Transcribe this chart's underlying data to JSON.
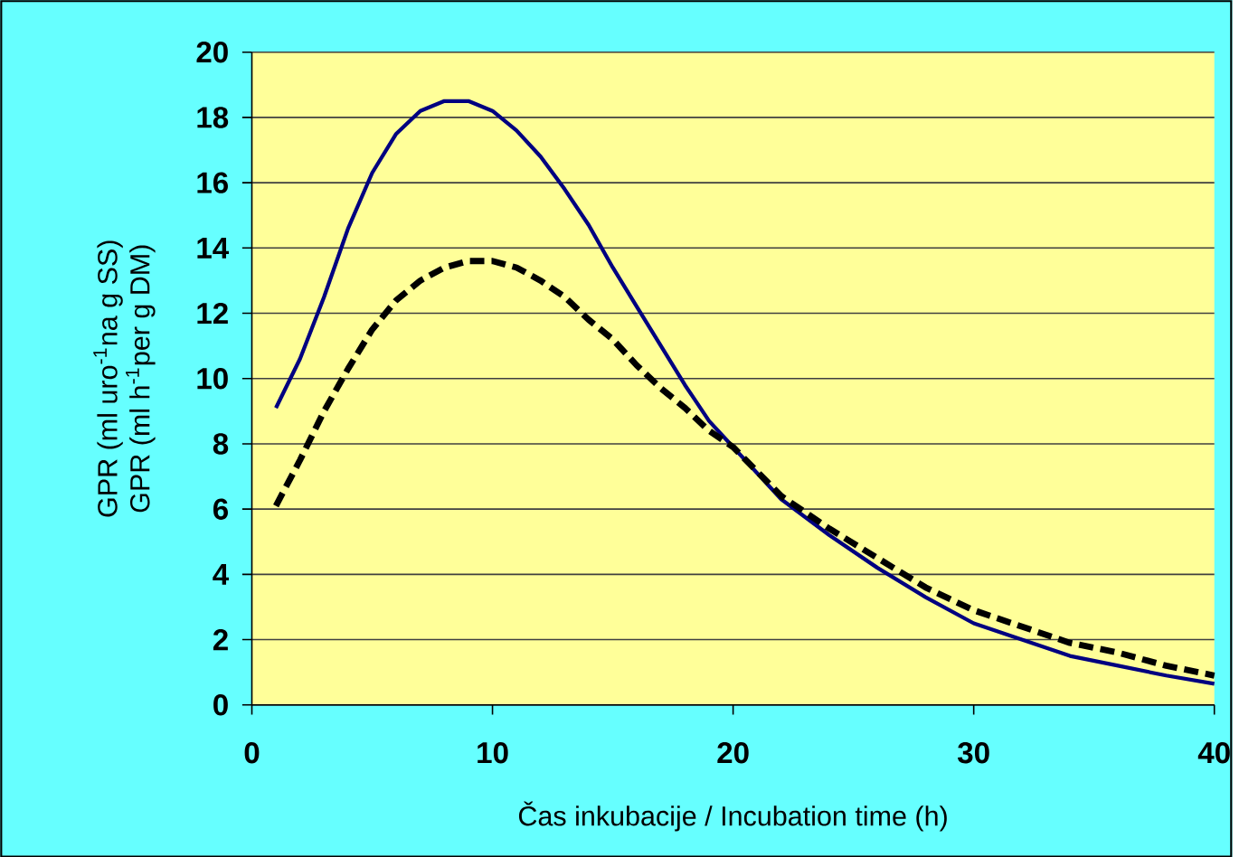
{
  "chart_data": {
    "type": "line",
    "xlabel": "Čas inkubacije / Incubation time (h)",
    "ylabel": [
      "GPR (ml uro$^{-1}$na g SS)",
      "GPR (ml h$^{-1}$per g DM)"
    ],
    "xlim": [
      0,
      40
    ],
    "xticks": [
      0,
      10,
      20,
      30,
      40
    ],
    "ylim": [
      0,
      20
    ],
    "yticks": [
      0,
      2,
      4,
      6,
      8,
      10,
      12,
      14,
      16,
      18,
      20
    ],
    "grid": "y",
    "legend": false,
    "marker": "none",
    "series": [
      {
        "color": "#000080",
        "line_style": "solid",
        "x": [
          1,
          2,
          3,
          4,
          5,
          6,
          7,
          8,
          9,
          10,
          11,
          12,
          13,
          14,
          15,
          16,
          17,
          18,
          19,
          20,
          22,
          24,
          26,
          28,
          30,
          32,
          34,
          36,
          38,
          40
        ],
        "values": [
          9.1,
          10.6,
          12.5,
          14.6,
          16.3,
          17.5,
          18.2,
          18.5,
          18.5,
          18.2,
          17.6,
          16.8,
          15.8,
          14.7,
          13.4,
          12.2,
          11.0,
          9.8,
          8.7,
          7.9,
          6.3,
          5.2,
          4.2,
          3.3,
          2.5,
          2.0,
          1.5,
          1.2,
          0.9,
          0.65
        ]
      },
      {
        "color": "#000000",
        "line_style": "dashed",
        "x": [
          1,
          2,
          3,
          4,
          5,
          6,
          7,
          8,
          9,
          10,
          11,
          12,
          13,
          14,
          15,
          16,
          17,
          18,
          19,
          20,
          22,
          24,
          26,
          28,
          30,
          32,
          34,
          36,
          38,
          40
        ],
        "values": [
          6.1,
          7.5,
          9.0,
          10.3,
          11.5,
          12.4,
          13.0,
          13.4,
          13.6,
          13.6,
          13.4,
          13.0,
          12.5,
          11.8,
          11.2,
          10.4,
          9.7,
          9.1,
          8.4,
          7.9,
          6.4,
          5.4,
          4.5,
          3.6,
          2.9,
          2.4,
          1.9,
          1.6,
          1.2,
          0.9
        ]
      }
    ]
  }
}
